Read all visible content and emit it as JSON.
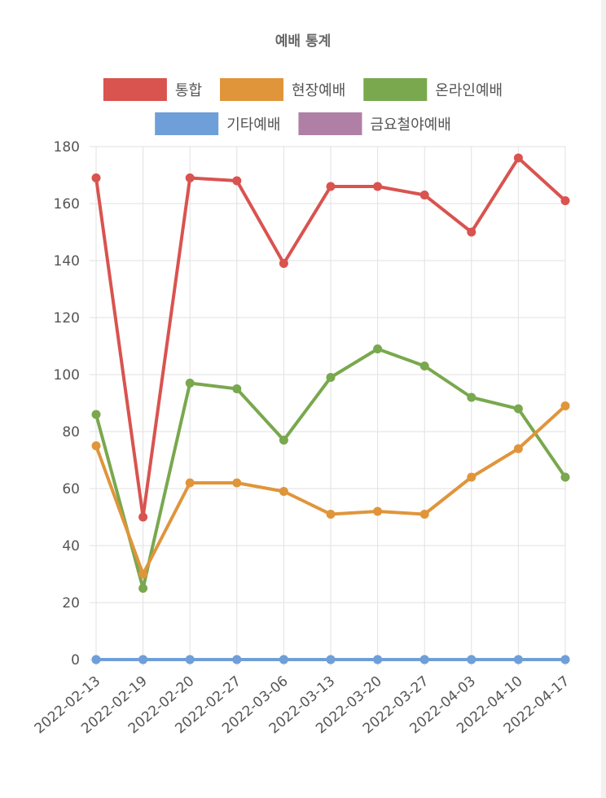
{
  "chart_data": {
    "type": "line",
    "title": "예배 통계",
    "xlabel": "",
    "ylabel": "",
    "categories": [
      "2022-02-13",
      "2022-02-19",
      "2022-02-20",
      "2022-02-27",
      "2022-03-06",
      "2022-03-13",
      "2022-03-20",
      "2022-03-27",
      "2022-04-03",
      "2022-04-10",
      "2022-04-17"
    ],
    "ylim": [
      0,
      180
    ],
    "yticks": [
      "0",
      "20",
      "40",
      "60",
      "80",
      "100",
      "120",
      "140",
      "160",
      "180"
    ],
    "grid": true,
    "legend_position": "top",
    "series": [
      {
        "name": "통합",
        "color": "#d9534f",
        "values": [
          169,
          50,
          169,
          168,
          139,
          166,
          166,
          163,
          150,
          176,
          161
        ]
      },
      {
        "name": "현장예배",
        "color": "#e0953b",
        "values": [
          75,
          30,
          62,
          62,
          59,
          51,
          52,
          51,
          64,
          74,
          89
        ]
      },
      {
        "name": "온라인예배",
        "color": "#79a84e",
        "values": [
          86,
          25,
          97,
          95,
          77,
          99,
          109,
          103,
          92,
          88,
          64
        ]
      },
      {
        "name": "기타예배",
        "color": "#6f9fd8",
        "values": [
          0,
          0,
          0,
          0,
          0,
          0,
          0,
          0,
          0,
          0,
          0
        ]
      },
      {
        "name": "금요철야예배",
        "color": "#b07fa6",
        "values": [
          0,
          0,
          0,
          0,
          0,
          0,
          0,
          0,
          0,
          0,
          0
        ]
      }
    ]
  }
}
